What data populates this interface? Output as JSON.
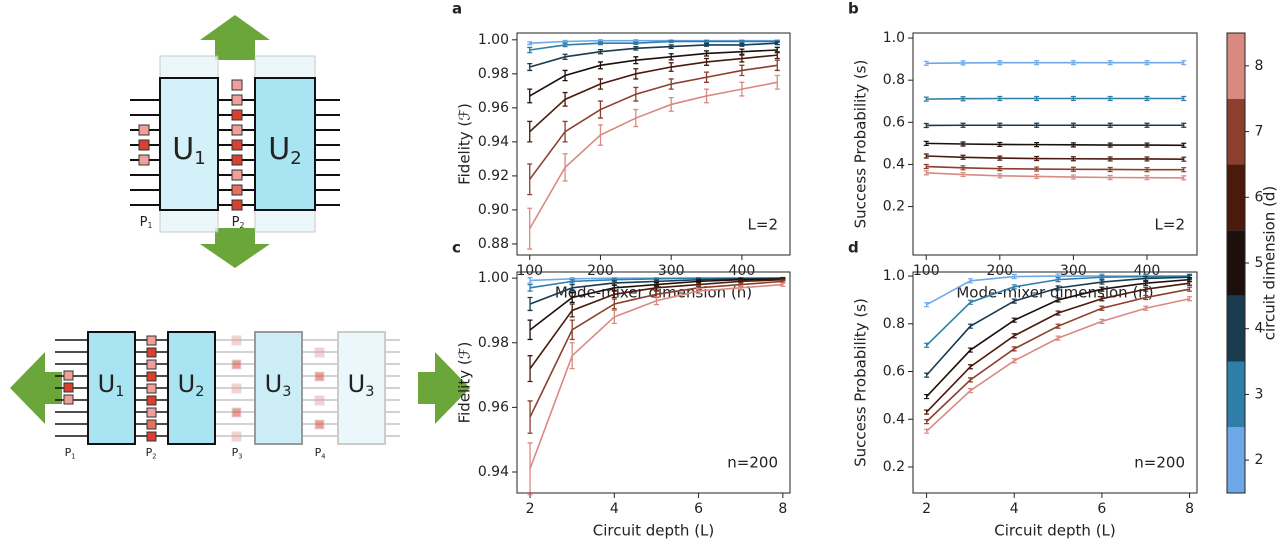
{
  "diagram": {
    "top": {
      "unitaries": [
        {
          "text": "U",
          "sub": "1"
        },
        {
          "text": "U",
          "sub": "2"
        }
      ],
      "phases": [
        {
          "text": "P",
          "sub": "1"
        },
        {
          "text": "P",
          "sub": "2"
        }
      ]
    },
    "bottom": {
      "unitaries": [
        {
          "text": "U",
          "sub": "1"
        },
        {
          "text": "U",
          "sub": "2"
        },
        {
          "text": "U",
          "sub": "3"
        },
        {
          "text": "U",
          "sub": "3"
        }
      ],
      "phases": [
        {
          "text": "P",
          "sub": "1"
        },
        {
          "text": "P",
          "sub": "2"
        },
        {
          "text": "P",
          "sub": "3"
        },
        {
          "text": "P",
          "sub": "4"
        }
      ]
    }
  },
  "chart_data": [
    {
      "type": "line",
      "panel": "a",
      "xlabel": "Mode-mixer dimension (n)",
      "ylabel": "Fidelity (ℱ)",
      "annotation": "L=2",
      "x": [
        100,
        150,
        200,
        250,
        300,
        350,
        400,
        450
      ],
      "xlim": [
        82,
        468
      ],
      "xticks": [
        100,
        200,
        300,
        400
      ],
      "ylim": [
        0.8735,
        1.004
      ],
      "yticks": [
        0.88,
        {
          "value": 0.9,
          "label": "0.90"
        },
        0.92,
        0.94,
        0.96,
        0.98,
        {
          "value": 1,
          "label": "1.00"
        }
      ],
      "series": [
        {
          "color": "#6fa8e8",
          "values": [
            0.998,
            0.999,
            0.9995,
            0.9995,
            0.9995,
            0.9995,
            0.9995,
            0.9995
          ],
          "errors": [
            0.0008,
            0.0006,
            0.0005,
            0.0005,
            0.0004,
            0.0004,
            0.0004,
            0.0004
          ]
        },
        {
          "color": "#2e7ea8",
          "values": [
            0.994,
            0.997,
            0.998,
            0.998,
            0.999,
            0.999,
            0.999,
            0.999
          ],
          "errors": [
            0.0015,
            0.001,
            0.0008,
            0.0007,
            0.0006,
            0.0005,
            0.0005,
            0.0005
          ]
        },
        {
          "color": "#1a3a4f",
          "values": [
            0.984,
            0.99,
            0.993,
            0.995,
            0.996,
            0.997,
            0.997,
            0.998
          ],
          "errors": [
            0.002,
            0.0015,
            0.0012,
            0.001,
            0.001,
            0.0008,
            0.0008,
            0.0008
          ]
        },
        {
          "color": "#1c0f0c",
          "values": [
            0.967,
            0.979,
            0.985,
            0.988,
            0.99,
            0.992,
            0.993,
            0.994
          ],
          "errors": [
            0.004,
            0.003,
            0.002,
            0.002,
            0.0018,
            0.0015,
            0.0015,
            0.0015
          ]
        },
        {
          "color": "#4a1a0c",
          "values": [
            0.946,
            0.965,
            0.974,
            0.98,
            0.984,
            0.987,
            0.989,
            0.991
          ],
          "errors": [
            0.006,
            0.004,
            0.003,
            0.003,
            0.0025,
            0.002,
            0.002,
            0.002
          ]
        },
        {
          "color": "#8c3f2c",
          "values": [
            0.918,
            0.946,
            0.959,
            0.968,
            0.974,
            0.978,
            0.982,
            0.985
          ],
          "errors": [
            0.009,
            0.006,
            0.005,
            0.004,
            0.003,
            0.003,
            0.003,
            0.003
          ]
        },
        {
          "color": "#d98a80",
          "values": [
            0.889,
            0.925,
            0.944,
            0.954,
            0.962,
            0.967,
            0.971,
            0.975
          ],
          "errors": [
            0.012,
            0.008,
            0.006,
            0.005,
            0.004,
            0.004,
            0.004,
            0.004
          ]
        }
      ]
    },
    {
      "type": "line",
      "panel": "b",
      "xlabel": "Mode-mixer dimension (n)",
      "ylabel": "Success Probability (s)",
      "annotation": "L=2",
      "x": [
        100,
        150,
        200,
        250,
        300,
        350,
        400,
        450
      ],
      "xlim": [
        82,
        468
      ],
      "xticks": [
        100,
        200,
        300,
        400
      ],
      "ylim": [
        -0.03,
        1.024
      ],
      "yticks": [
        0.2,
        0.4,
        0.6,
        0.8,
        {
          "value": 1,
          "label": "1.0"
        }
      ],
      "series": [
        {
          "color": "#6fa8e8",
          "values": [
            0.88,
            0.882,
            0.883,
            0.883,
            0.883,
            0.883,
            0.883,
            0.883
          ]
        },
        {
          "color": "#2e7ea8",
          "values": [
            0.71,
            0.712,
            0.713,
            0.713,
            0.713,
            0.713,
            0.713,
            0.713
          ]
        },
        {
          "color": "#1a3a4f",
          "values": [
            0.585,
            0.586,
            0.586,
            0.586,
            0.586,
            0.586,
            0.586,
            0.586
          ]
        },
        {
          "color": "#1c0f0c",
          "values": [
            0.5,
            0.497,
            0.495,
            0.494,
            0.493,
            0.492,
            0.492,
            0.491
          ]
        },
        {
          "color": "#4a1a0c",
          "values": [
            0.44,
            0.434,
            0.43,
            0.428,
            0.427,
            0.426,
            0.426,
            0.425
          ]
        },
        {
          "color": "#8c3f2c",
          "values": [
            0.39,
            0.384,
            0.38,
            0.378,
            0.377,
            0.376,
            0.375,
            0.375
          ]
        },
        {
          "color": "#d98a80",
          "values": [
            0.36,
            0.352,
            0.346,
            0.343,
            0.34,
            0.338,
            0.337,
            0.336
          ]
        }
      ]
    },
    {
      "type": "line",
      "panel": "c",
      "xlabel": "Circuit depth (L)",
      "ylabel": "Fidelity (ℱ)",
      "annotation": "n=200",
      "x": [
        2,
        3,
        4,
        5,
        6,
        7,
        8
      ],
      "xlim": [
        1.69,
        8.17
      ],
      "xticks": [
        2,
        4,
        6,
        8
      ],
      "ylim": [
        0.9335,
        1.0019
      ],
      "yticks": [
        0.94,
        0.96,
        0.98,
        {
          "value": 1,
          "label": "1.00"
        }
      ],
      "series": [
        {
          "color": "#6fa8e8",
          "values": [
            0.9993,
            0.9998,
            1,
            1,
            1,
            1,
            1
          ],
          "errors": [
            0.0008,
            0.0003,
            0.0002,
            0.0001,
            0.0001,
            0.0001,
            0.0001
          ]
        },
        {
          "color": "#2e7ea8",
          "values": [
            0.997,
            0.999,
            0.9995,
            0.9998,
            1,
            1,
            1
          ],
          "errors": [
            0.001,
            0.0005,
            0.0003,
            0.0002,
            0.0001,
            0.0001,
            0.0001
          ]
        },
        {
          "color": "#1a3a4f",
          "values": [
            0.992,
            0.997,
            0.9985,
            0.999,
            0.9995,
            0.9998,
            1
          ],
          "errors": [
            0.002,
            0.001,
            0.0006,
            0.0004,
            0.0003,
            0.0002,
            0.0002
          ]
        },
        {
          "color": "#1c0f0c",
          "values": [
            0.984,
            0.994,
            0.997,
            0.998,
            0.999,
            0.9995,
            0.9997
          ],
          "errors": [
            0.003,
            0.0015,
            0.0008,
            0.0006,
            0.0004,
            0.0003,
            0.0002
          ]
        },
        {
          "color": "#4a1a0c",
          "values": [
            0.972,
            0.99,
            0.995,
            0.997,
            0.998,
            0.999,
            0.9995
          ],
          "errors": [
            0.004,
            0.002,
            0.001,
            0.0007,
            0.0005,
            0.0004,
            0.0003
          ]
        },
        {
          "color": "#8c3f2c",
          "values": [
            0.957,
            0.984,
            0.992,
            0.995,
            0.997,
            0.998,
            0.999
          ],
          "errors": [
            0.005,
            0.003,
            0.0015,
            0.001,
            0.0007,
            0.0005,
            0.0004
          ]
        },
        {
          "color": "#d98a80",
          "values": [
            0.941,
            0.976,
            0.988,
            0.993,
            0.996,
            0.997,
            0.998
          ],
          "errors": [
            0.008,
            0.004,
            0.002,
            0.0012,
            0.0008,
            0.0006,
            0.0005
          ]
        }
      ]
    },
    {
      "type": "line",
      "panel": "d",
      "xlabel": "Circuit depth (L)",
      "ylabel": "Success Probability (s)",
      "annotation": "n=200",
      "x": [
        2,
        3,
        4,
        5,
        6,
        7,
        8
      ],
      "xlim": [
        1.69,
        8.17
      ],
      "xticks": [
        2,
        4,
        6,
        8
      ],
      "ylim": [
        0.091,
        1.017
      ],
      "yticks": [
        0.2,
        0.4,
        0.6,
        0.8,
        {
          "value": 1,
          "label": "1.0"
        }
      ],
      "series": [
        {
          "color": "#6fa8e8",
          "values": [
            0.88,
            0.98,
            0.998,
            1,
            1,
            1,
            1
          ]
        },
        {
          "color": "#2e7ea8",
          "values": [
            0.71,
            0.89,
            0.955,
            0.985,
            0.995,
            0.998,
            0.999
          ]
        },
        {
          "color": "#1a3a4f",
          "values": [
            0.585,
            0.79,
            0.895,
            0.95,
            0.975,
            0.99,
            0.995
          ]
        },
        {
          "color": "#1c0f0c",
          "values": [
            0.495,
            0.69,
            0.815,
            0.9,
            0.945,
            0.97,
            0.985
          ]
        },
        {
          "color": "#4a1a0c",
          "values": [
            0.43,
            0.62,
            0.75,
            0.845,
            0.905,
            0.945,
            0.97
          ]
        },
        {
          "color": "#8c3f2c",
          "values": [
            0.39,
            0.565,
            0.695,
            0.79,
            0.865,
            0.91,
            0.945
          ]
        },
        {
          "color": "#d98a80",
          "values": [
            0.35,
            0.52,
            0.645,
            0.74,
            0.81,
            0.865,
            0.905
          ]
        }
      ]
    }
  ],
  "colorbar": {
    "label": "circuit dimension (d)",
    "ticks": [
      2,
      3,
      4,
      5,
      6,
      7,
      8
    ],
    "colors": [
      "#6fa8e8",
      "#2e7ea8",
      "#1a3a4f",
      "#1c0f0c",
      "#4a1a0c",
      "#8c3f2c",
      "#d98a80"
    ]
  }
}
